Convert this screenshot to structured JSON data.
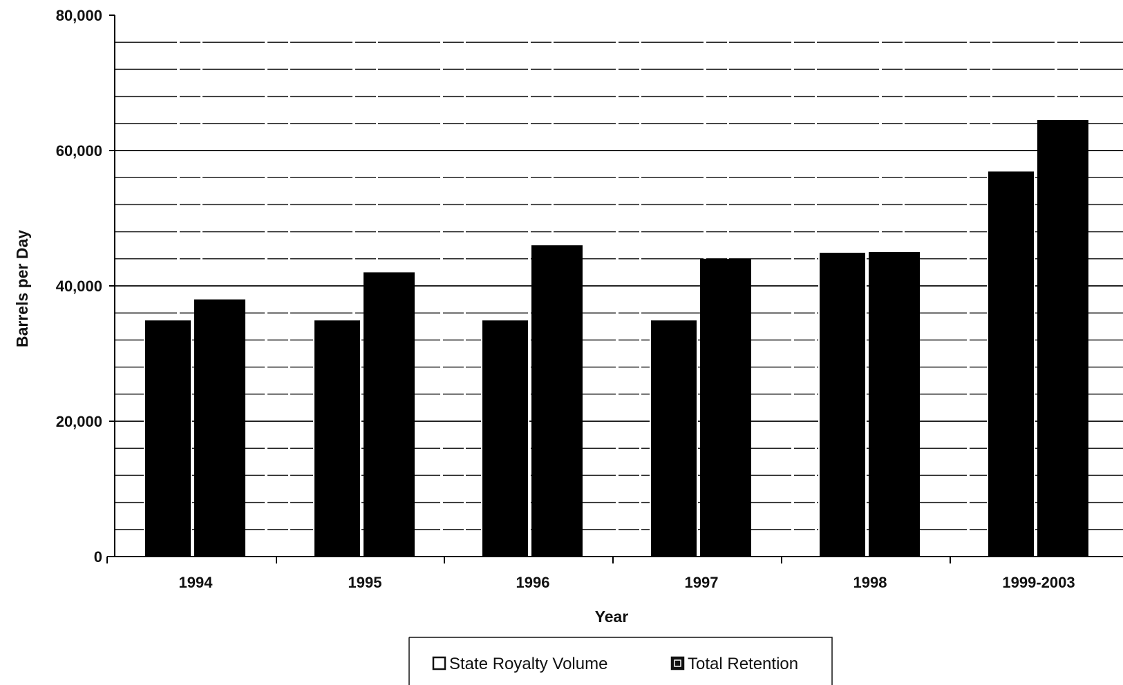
{
  "chart_data": {
    "type": "bar",
    "xlabel": "Year",
    "ylabel": "Barrels per Day",
    "categories": [
      "1994",
      "1995",
      "1996",
      "1997",
      "1998",
      "1999-2003"
    ],
    "series": [
      {
        "name": "State Royalty Volume",
        "values": [
          35000,
          35000,
          35000,
          35000,
          45000,
          57000
        ]
      },
      {
        "name": "Total Retention",
        "values": [
          38000,
          42000,
          46000,
          44000,
          45000,
          64500
        ]
      }
    ],
    "ylim": [
      0,
      80000
    ],
    "yticks": [
      0,
      20000,
      40000,
      60000,
      80000
    ],
    "ytick_labels": [
      "0",
      "20,000",
      "40,000",
      "60,000",
      "80,000"
    ],
    "grid": true,
    "legend_position": "bottom",
    "colors": {
      "bar": "#000000",
      "grid": "#222222",
      "axis": "#000000"
    }
  }
}
